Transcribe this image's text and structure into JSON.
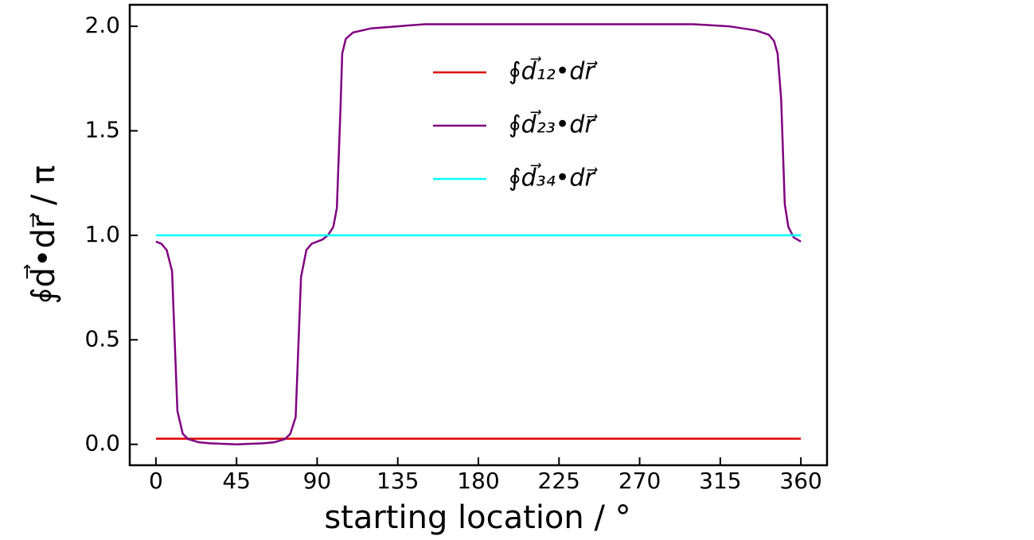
{
  "chart_data": {
    "type": "line",
    "xlabel": "starting location / °",
    "ylabel": "∮d⃗•dr⃗ / π",
    "xlim": [
      -14.6,
      374.6
    ],
    "ylim": [
      -0.1,
      2.103
    ],
    "xticks": [
      0,
      45,
      90,
      135,
      180,
      225,
      270,
      315,
      360
    ],
    "yticks": [
      {
        "value": 0,
        "label": "0.0"
      },
      0.5,
      {
        "value": 1,
        "label": "1.0"
      },
      1.5,
      {
        "value": 2,
        "label": "2.0"
      }
    ],
    "legend": "upper center",
    "series": [
      {
        "name": "∮d⃗₁₂•dr⃗",
        "color": "#e00000",
        "x": [
          0,
          360
        ],
        "values": [
          0.027,
          0.027
        ]
      },
      {
        "name": "∮d⃗₂₃•dr⃗",
        "color": "#800080",
        "x": [
          0,
          3,
          6,
          9,
          12,
          15,
          18,
          24,
          30,
          45,
          60,
          66,
          72,
          75,
          78,
          81,
          84,
          87,
          93,
          96,
          99,
          101,
          103,
          104,
          106,
          110,
          120,
          135,
          150,
          180,
          225,
          270,
          300,
          320,
          335,
          342,
          345,
          347,
          349,
          351,
          353,
          356,
          360
        ],
        "values": [
          0.97,
          0.96,
          0.93,
          0.83,
          0.16,
          0.05,
          0.025,
          0.01,
          0.005,
          0.0,
          0.005,
          0.01,
          0.025,
          0.05,
          0.13,
          0.8,
          0.93,
          0.96,
          0.98,
          1.0,
          1.04,
          1.13,
          1.6,
          1.87,
          1.94,
          1.97,
          1.99,
          2.0,
          2.01,
          2.01,
          2.01,
          2.01,
          2.01,
          2.0,
          1.98,
          1.96,
          1.93,
          1.87,
          1.65,
          1.15,
          1.04,
          0.99,
          0.97
        ]
      },
      {
        "name": "∮d⃗₃₄•dr⃗",
        "color": "#00ffff",
        "x": [
          0,
          360
        ],
        "values": [
          1.0,
          1.0
        ]
      }
    ]
  }
}
